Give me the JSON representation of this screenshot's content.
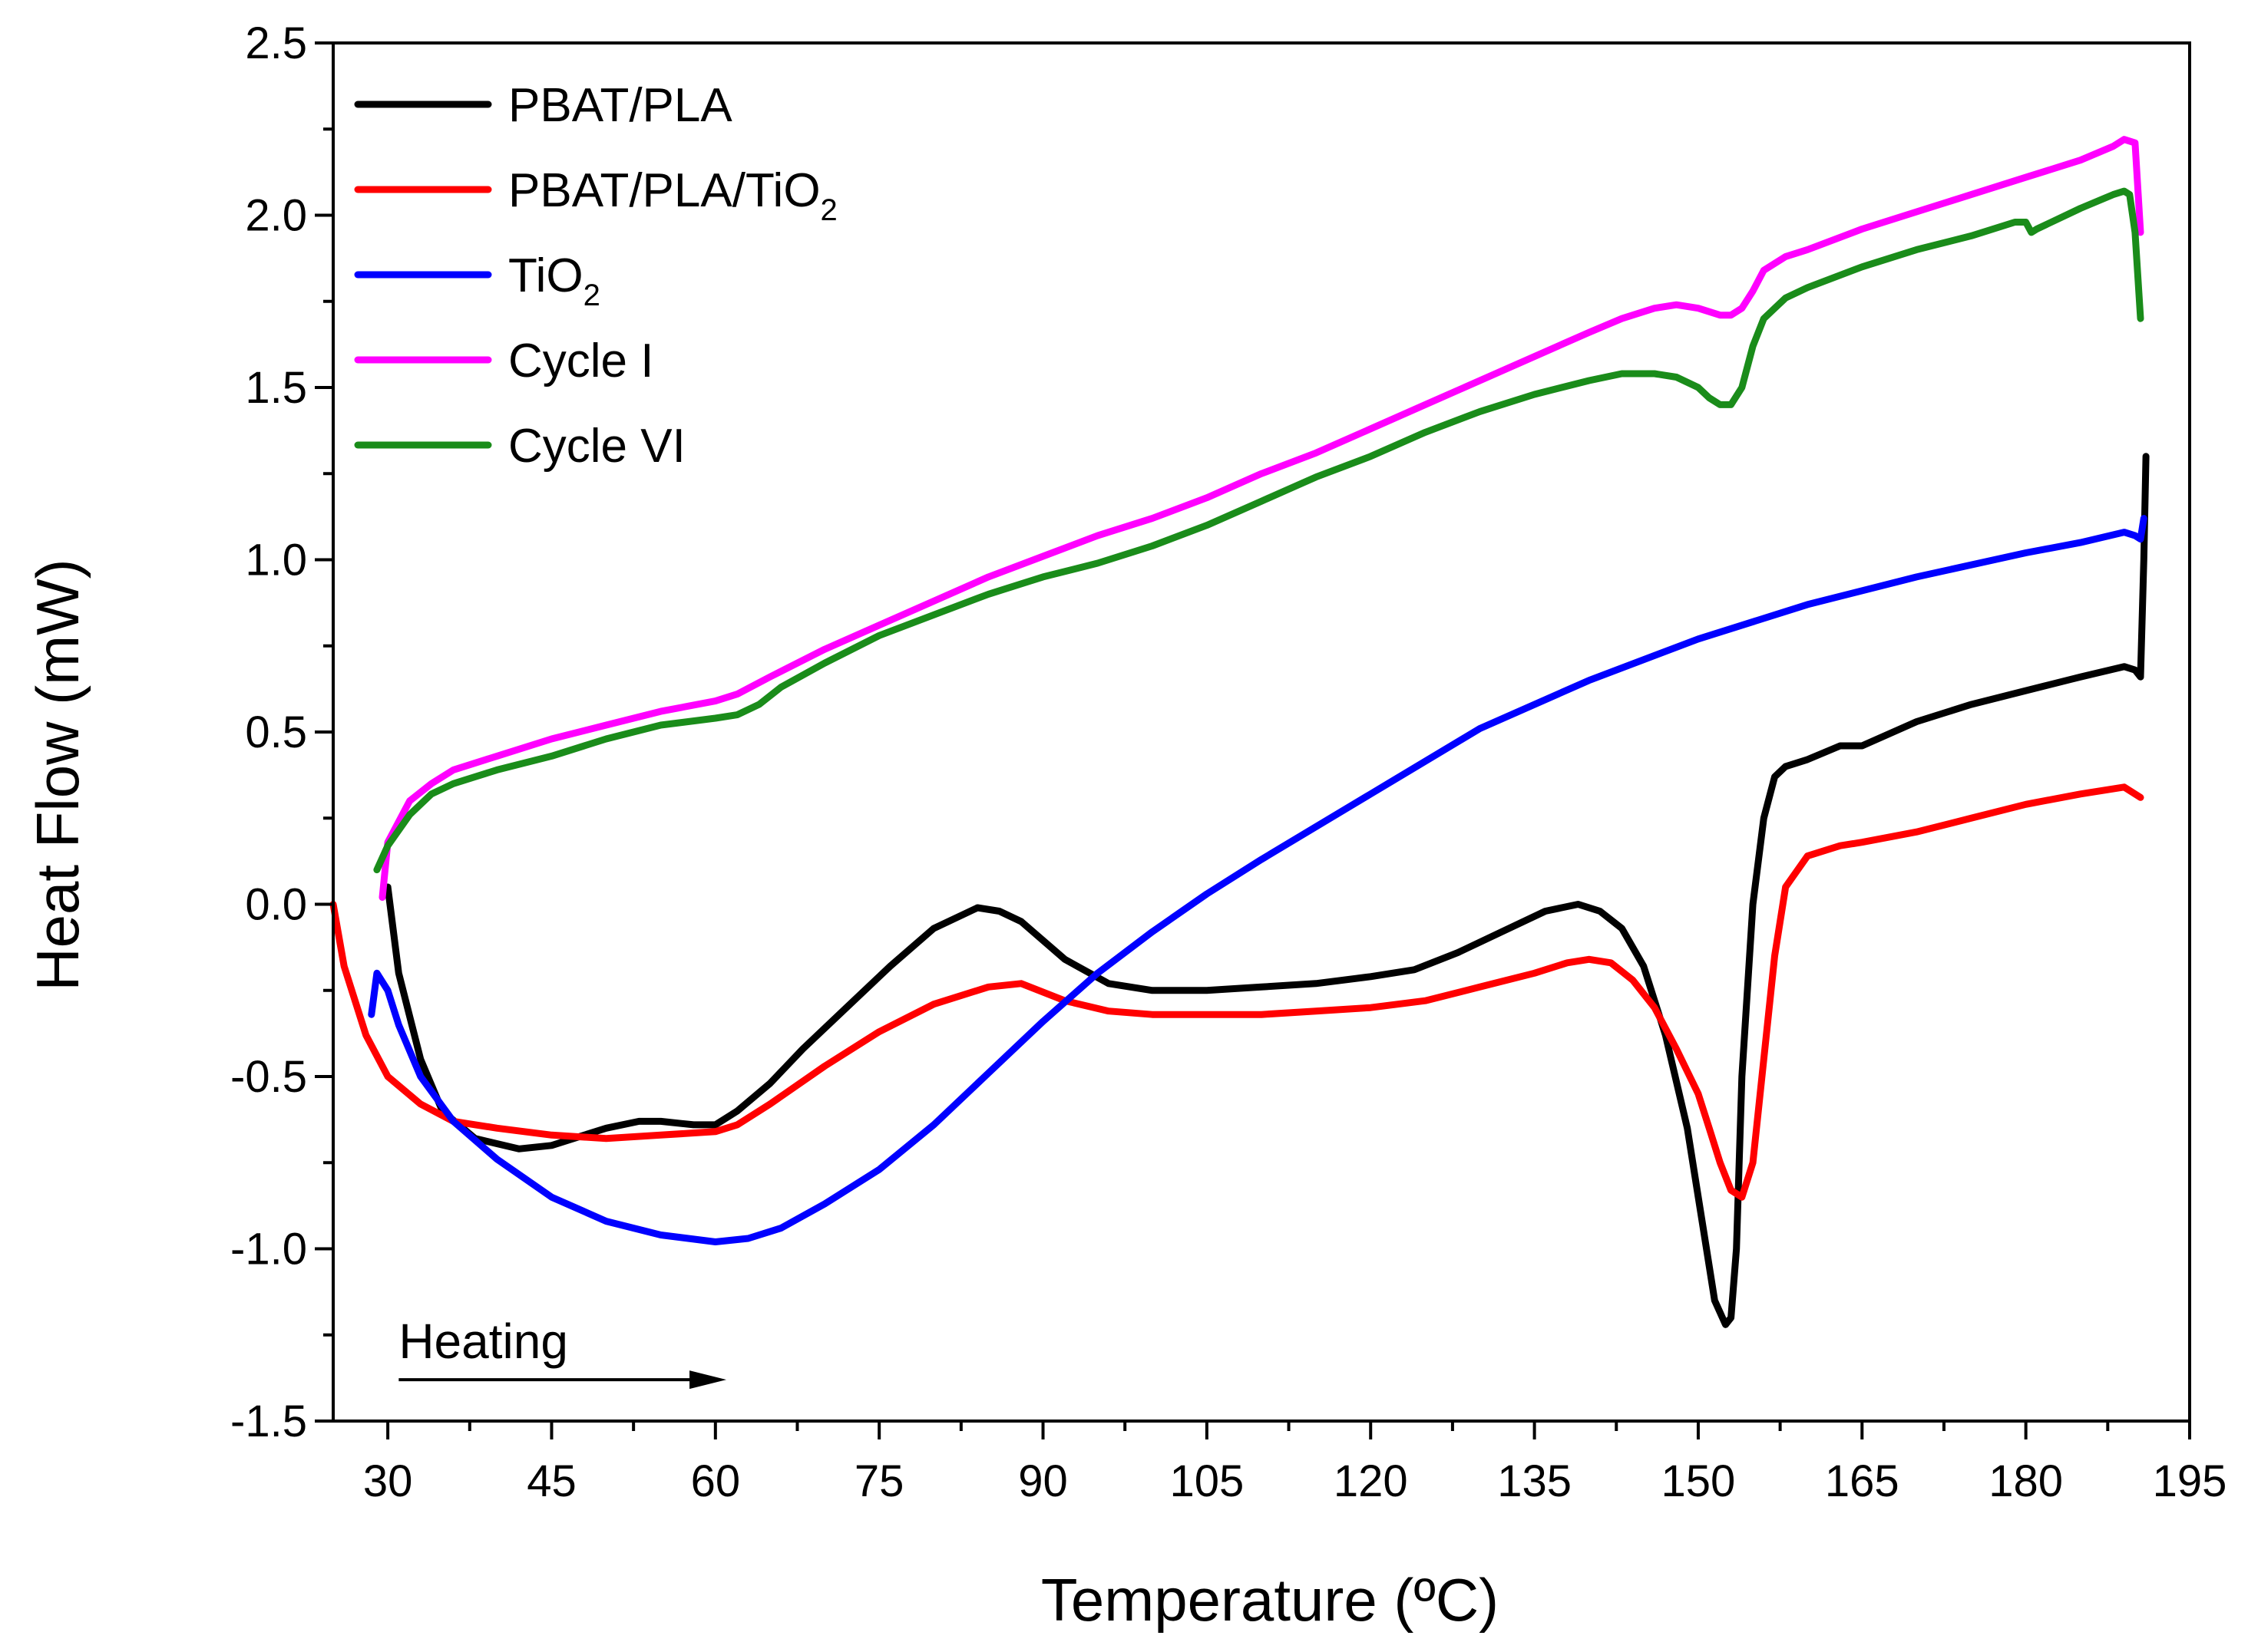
{
  "chart_data": {
    "type": "line",
    "title": "",
    "xlabel": "Temperature (ºC)",
    "ylabel": "Heat Flow (mW)",
    "xlim": [
      25,
      195
    ],
    "ylim": [
      -1.5,
      2.5
    ],
    "x_ticks": [
      30,
      45,
      60,
      75,
      90,
      105,
      120,
      135,
      150,
      165,
      180,
      195
    ],
    "x_tick_labels": [
      "30",
      "45",
      "60",
      "75",
      "90",
      "105",
      "120",
      "135",
      "150",
      "165",
      "180",
      "195"
    ],
    "y_ticks": [
      -1.5,
      -1.0,
      -0.5,
      0.0,
      0.5,
      1.0,
      1.5,
      2.0,
      2.5
    ],
    "y_tick_labels": [
      "-1.5",
      "-1.0",
      "-0.5",
      "0.0",
      "0.5",
      "1.0",
      "1.5",
      "2.0",
      "2.5"
    ],
    "grid": false,
    "legend_position": "top-left",
    "annotations": [
      {
        "text": "Heating",
        "arrow": "right",
        "x_start": 31,
        "x_end": 61,
        "y": -1.38
      }
    ],
    "series": [
      {
        "name": "PBAT/PLA",
        "label_main": "PBAT/PLA",
        "label_sub": "",
        "color": "#000000",
        "x": [
          30,
          31,
          33,
          35,
          38,
          42,
          45,
          48,
          50,
          53,
          55,
          58,
          60,
          62,
          65,
          68,
          72,
          76,
          80,
          84,
          86,
          88,
          92,
          96,
          100,
          105,
          110,
          115,
          120,
          124,
          128,
          132,
          136,
          139,
          141,
          143,
          145,
          147,
          149,
          150.5,
          151.5,
          152.5,
          153,
          153.5,
          154,
          155,
          156,
          157,
          158,
          160,
          163,
          165,
          170,
          175,
          180,
          185,
          189,
          190,
          190.5,
          190.8,
          191
        ],
        "y": [
          0.05,
          -0.2,
          -0.45,
          -0.6,
          -0.68,
          -0.71,
          -0.7,
          -0.67,
          -0.65,
          -0.63,
          -0.63,
          -0.64,
          -0.64,
          -0.6,
          -0.52,
          -0.42,
          -0.3,
          -0.18,
          -0.07,
          -0.01,
          -0.02,
          -0.05,
          -0.16,
          -0.23,
          -0.25,
          -0.25,
          -0.24,
          -0.23,
          -0.21,
          -0.19,
          -0.14,
          -0.08,
          -0.02,
          0.0,
          -0.02,
          -0.07,
          -0.18,
          -0.38,
          -0.65,
          -0.95,
          -1.15,
          -1.22,
          -1.2,
          -1.0,
          -0.5,
          0.0,
          0.25,
          0.37,
          0.4,
          0.42,
          0.46,
          0.46,
          0.53,
          0.58,
          0.62,
          0.66,
          0.69,
          0.68,
          0.66,
          1.0,
          1.3
        ]
      },
      {
        "name": "PBAT/PLA/TiO2",
        "label_main": "PBAT/PLA/TiO",
        "label_sub": "2",
        "color": "#ff0000",
        "x": [
          25,
          26,
          28,
          30,
          33,
          36,
          40,
          45,
          50,
          55,
          60,
          62,
          65,
          70,
          75,
          80,
          85,
          88,
          92,
          96,
          100,
          105,
          110,
          115,
          120,
          125,
          130,
          135,
          138,
          140,
          142,
          144,
          146,
          148,
          150,
          151,
          152,
          153,
          154,
          155,
          156,
          157,
          158,
          160,
          163,
          165,
          170,
          175,
          180,
          185,
          189,
          190,
          190.5
        ],
        "y": [
          0.0,
          -0.18,
          -0.38,
          -0.5,
          -0.58,
          -0.63,
          -0.65,
          -0.67,
          -0.68,
          -0.67,
          -0.66,
          -0.64,
          -0.58,
          -0.47,
          -0.37,
          -0.29,
          -0.24,
          -0.23,
          -0.28,
          -0.31,
          -0.32,
          -0.32,
          -0.32,
          -0.31,
          -0.3,
          -0.28,
          -0.24,
          -0.2,
          -0.17,
          -0.16,
          -0.17,
          -0.22,
          -0.3,
          -0.42,
          -0.55,
          -0.65,
          -0.75,
          -0.83,
          -0.85,
          -0.75,
          -0.45,
          -0.15,
          0.05,
          0.14,
          0.17,
          0.18,
          0.21,
          0.25,
          0.29,
          0.32,
          0.34,
          0.32,
          0.31
        ]
      },
      {
        "name": "TiO2",
        "label_main": "TiO",
        "label_sub": "2",
        "color": "#0000ff",
        "x": [
          28.5,
          29,
          30,
          31,
          33,
          36,
          40,
          45,
          50,
          55,
          60,
          63,
          66,
          70,
          75,
          80,
          85,
          90,
          95,
          100,
          105,
          110,
          120,
          130,
          140,
          150,
          160,
          170,
          180,
          185,
          189,
          190,
          190.5,
          190.8
        ],
        "y": [
          -0.32,
          -0.2,
          -0.25,
          -0.35,
          -0.5,
          -0.63,
          -0.74,
          -0.85,
          -0.92,
          -0.96,
          -0.98,
          -0.97,
          -0.94,
          -0.87,
          -0.77,
          -0.64,
          -0.49,
          -0.34,
          -0.2,
          -0.08,
          0.03,
          0.13,
          0.32,
          0.51,
          0.65,
          0.77,
          0.87,
          0.95,
          1.02,
          1.05,
          1.08,
          1.07,
          1.06,
          1.12
        ]
      },
      {
        "name": "Cycle I",
        "label_main": "Cycle I",
        "label_sub": "",
        "color": "#ff00ff",
        "x": [
          29.5,
          30,
          32,
          34,
          36,
          40,
          45,
          50,
          55,
          60,
          62,
          65,
          70,
          75,
          80,
          85,
          90,
          95,
          100,
          105,
          110,
          115,
          120,
          125,
          130,
          135,
          140,
          143,
          146,
          148,
          150,
          152,
          153,
          154,
          155,
          156,
          158,
          160,
          165,
          170,
          175,
          180,
          185,
          188,
          189,
          190,
          190.5
        ],
        "y": [
          0.02,
          0.18,
          0.3,
          0.35,
          0.39,
          0.43,
          0.48,
          0.52,
          0.56,
          0.59,
          0.61,
          0.66,
          0.74,
          0.81,
          0.88,
          0.95,
          1.01,
          1.07,
          1.12,
          1.18,
          1.25,
          1.31,
          1.38,
          1.45,
          1.52,
          1.59,
          1.66,
          1.7,
          1.73,
          1.74,
          1.73,
          1.71,
          1.71,
          1.73,
          1.78,
          1.84,
          1.88,
          1.9,
          1.96,
          2.01,
          2.06,
          2.11,
          2.16,
          2.2,
          2.22,
          2.21,
          1.95
        ]
      },
      {
        "name": "Cycle VI",
        "label_main": "Cycle VI",
        "label_sub": "",
        "color": "#1a8c1a",
        "x": [
          29,
          30,
          32,
          34,
          36,
          40,
          45,
          50,
          55,
          60,
          62,
          64,
          66,
          70,
          75,
          80,
          85,
          90,
          95,
          100,
          105,
          110,
          115,
          120,
          125,
          130,
          135,
          140,
          143,
          146,
          148,
          150,
          151,
          152,
          153,
          154,
          155,
          156,
          157,
          158,
          160,
          165,
          170,
          175,
          179,
          180,
          180.5,
          181,
          185,
          188,
          189,
          189.5,
          190,
          190.5
        ],
        "y": [
          0.1,
          0.17,
          0.26,
          0.32,
          0.35,
          0.39,
          0.43,
          0.48,
          0.52,
          0.54,
          0.55,
          0.58,
          0.63,
          0.7,
          0.78,
          0.84,
          0.9,
          0.95,
          0.99,
          1.04,
          1.1,
          1.17,
          1.24,
          1.3,
          1.37,
          1.43,
          1.48,
          1.52,
          1.54,
          1.54,
          1.53,
          1.5,
          1.47,
          1.45,
          1.45,
          1.5,
          1.62,
          1.7,
          1.73,
          1.76,
          1.79,
          1.85,
          1.9,
          1.94,
          1.98,
          1.98,
          1.95,
          1.96,
          2.02,
          2.06,
          2.07,
          2.06,
          1.95,
          1.7
        ]
      }
    ]
  }
}
